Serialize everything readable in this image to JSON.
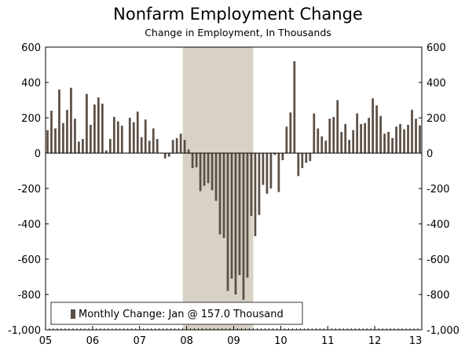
{
  "chart_data": {
    "type": "bar",
    "title": "Nonfarm Employment Change",
    "subtitle": "Change in Employment, In Thousands",
    "xlabel": "",
    "ylabel": "",
    "ylim": [
      -1000,
      600
    ],
    "yticks": [
      600,
      400,
      200,
      0,
      -200,
      -400,
      -600,
      -800,
      -1000
    ],
    "ytick_labels": [
      "600",
      "400",
      "200",
      "0",
      "-200",
      "-400",
      "-600",
      "-800",
      "-1,000"
    ],
    "xtick_labels": [
      "05",
      "06",
      "07",
      "08",
      "09",
      "10",
      "11",
      "12",
      "13"
    ],
    "start": "Jan 2005",
    "frequency": "monthly",
    "recession_shading": {
      "start_index": 35,
      "end_index": 53,
      "color": "#d8d2c4"
    },
    "bar_color": "#5c4f45",
    "series": [
      {
        "name": "Monthly Change",
        "values": [
          130,
          240,
          140,
          360,
          170,
          245,
          370,
          195,
          65,
          80,
          335,
          160,
          275,
          315,
          280,
          15,
          80,
          205,
          180,
          155,
          0,
          200,
          175,
          235,
          90,
          190,
          70,
          140,
          80,
          0,
          -30,
          -20,
          75,
          85,
          110,
          75,
          20,
          -85,
          -80,
          -215,
          -185,
          -170,
          -210,
          -270,
          -460,
          -480,
          -780,
          -710,
          -800,
          -690,
          -830,
          -705,
          -355,
          -470,
          -350,
          -180,
          -230,
          -200,
          -10,
          -220,
          -40,
          150,
          230,
          520,
          -130,
          -85,
          -55,
          -45,
          225,
          140,
          95,
          70,
          195,
          205,
          300,
          120,
          165,
          75,
          130,
          225,
          165,
          170,
          200,
          310,
          270,
          210,
          110,
          120,
          85,
          150,
          165,
          135,
          160,
          245,
          195,
          157
        ]
      }
    ],
    "legend": {
      "label": "Monthly Change: Jan @ 157.0 Thousand",
      "position": "bottom-left"
    }
  }
}
